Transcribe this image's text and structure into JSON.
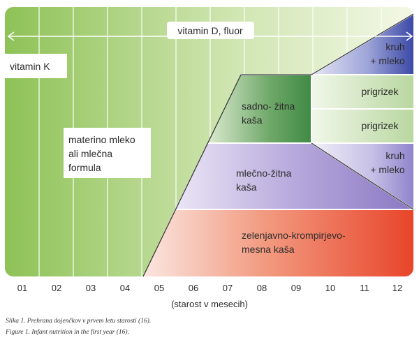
{
  "top_banner": "vitamin D, fluor",
  "left_labels": {
    "vitamin_k": "vitamin K",
    "milk": [
      "materino mleko",
      "ali mlečna",
      "formula"
    ]
  },
  "stages": {
    "vegetable": [
      "zelenjavno-krompirjevo-",
      "mesna kaša"
    ],
    "milk_cereal": [
      "mlečno-žitna",
      "kaša"
    ],
    "fruit_cereal": [
      "sadno- žitna",
      "kaša"
    ],
    "bread_milk_top": [
      "kruh",
      "+ mleko"
    ],
    "snack_1": "prigrizek",
    "snack_2": "prigrizek",
    "bread_milk_mid": [
      "kruh",
      "+ mleko"
    ]
  },
  "x_ticks": [
    "01",
    "02",
    "03",
    "04",
    "05",
    "06",
    "07",
    "08",
    "09",
    "10",
    "11",
    "12"
  ],
  "x_axis_label": "(starost v mesecih)",
  "captions": {
    "slovene": "Slika 1. Prehrana dojenčkov v prvem letu starosti (16).",
    "english": "Figure 1. Infant nutrition in the first year (16)."
  },
  "colors": {
    "background_green_dark": "#8ec257",
    "background_green_light": "#f3f8e6",
    "vegetable_red": "#e8452a",
    "milk_cereal_purple": "#8b78c2",
    "fruit_cereal_green": "#3f8a45",
    "bread_milk_blue": "#3c49a6",
    "snack_green": "#b9d7a0"
  }
}
